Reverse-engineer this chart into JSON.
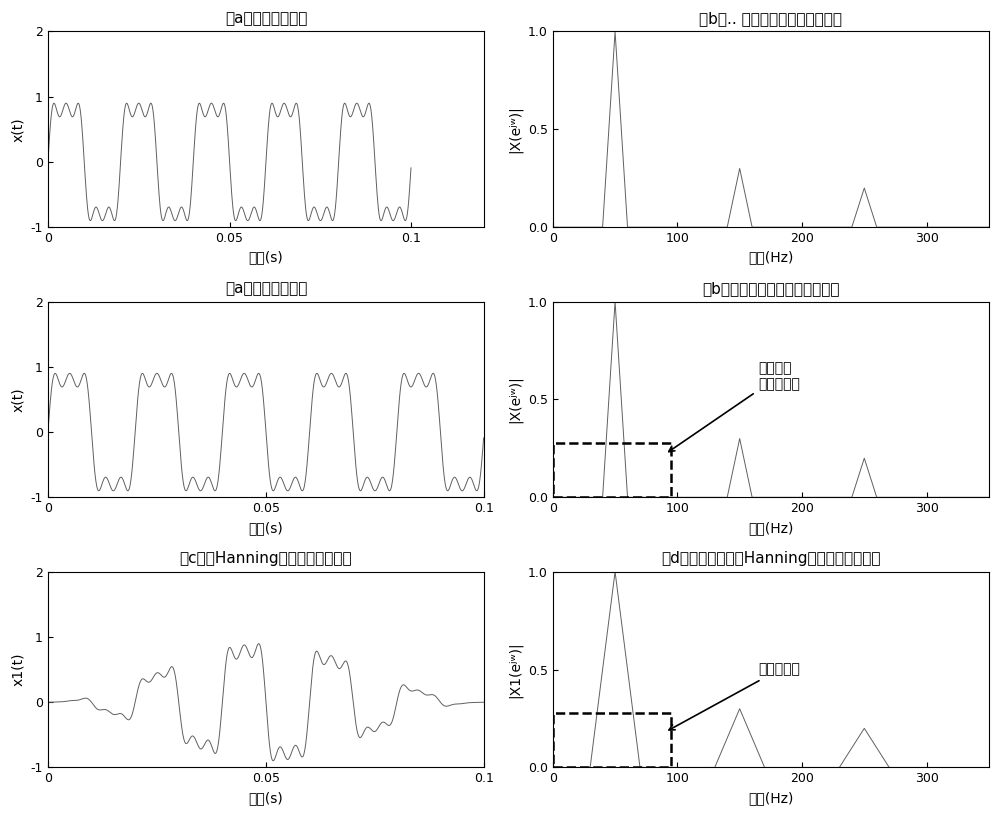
{
  "title_a1": "（a）电网谐波信号",
  "title_b1": "（b）.. 同步采样下的信号幅度谱",
  "title_a2": "（a）电网谐波信号",
  "title_b2": "（b）非同步采样下的信号幅度谱",
  "title_c": "（c）加Hanning窗的电网谐波信号",
  "title_d": "（d）非同步采样加Hanning窗下的信号幅度谱",
  "xlabel_time": "时间(s)",
  "xlabel_freq": "频率(Hz)",
  "ylabel_xt": "x(t)",
  "ylabel_x1t": "x1(t)",
  "ylabel_Xw": "|X(eʲʷ)|",
  "ylabel_X1w": "|X1(eʲʷ)|",
  "line_color": "#606060",
  "bg_color": "#ffffff",
  "annotation_text1": "频谱泄露\n稀疏性变差",
  "annotation_text2": "稀疏性提高",
  "font_size_title": 11,
  "font_size_label": 10,
  "font_size_tick": 9,
  "font_size_annot": 10
}
